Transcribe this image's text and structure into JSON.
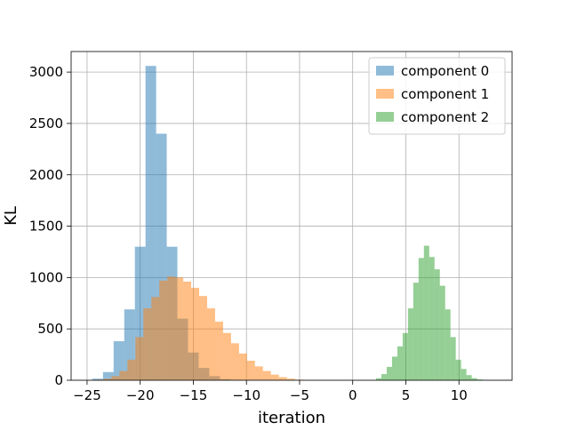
{
  "chart_data": {
    "type": "histogram",
    "title": "",
    "xlabel": "iteration",
    "ylabel": "KL",
    "xlim": [
      -26.5,
      15
    ],
    "ylim": [
      0,
      3200
    ],
    "xticks": [
      -25,
      -20,
      -15,
      -10,
      -5,
      0,
      5,
      10
    ],
    "xtick_labels": [
      "−25",
      "−20",
      "−15",
      "−10",
      "−5",
      "0",
      "5",
      "10"
    ],
    "yticks": [
      0,
      500,
      1000,
      1500,
      2000,
      2500,
      3000
    ],
    "ytick_labels": [
      "0",
      "500",
      "1000",
      "1500",
      "2000",
      "2500",
      "3000"
    ],
    "grid": true,
    "legend_position": "top-right",
    "series": [
      {
        "name": "component 0",
        "color": "#1f77b4",
        "alpha": 0.5,
        "bin_start": -24.5,
        "bin_width": 1.0,
        "values": [
          15,
          80,
          380,
          690,
          1300,
          3060,
          2400,
          1300,
          600,
          270,
          120,
          40,
          10,
          3
        ]
      },
      {
        "name": "component 1",
        "color": "#ff7f0e",
        "alpha": 0.5,
        "bin_start": -24.2,
        "bin_width": 0.75,
        "values": [
          5,
          15,
          40,
          90,
          200,
          420,
          700,
          810,
          970,
          1010,
          1000,
          960,
          900,
          820,
          700,
          570,
          460,
          360,
          260,
          190,
          135,
          90,
          55,
          30,
          15,
          6
        ]
      },
      {
        "name": "component 2",
        "color": "#2ca02c",
        "alpha": 0.5,
        "bin_start": 2.2,
        "bin_width": 0.5,
        "values": [
          20,
          60,
          130,
          230,
          330,
          460,
          700,
          950,
          1190,
          1310,
          1200,
          1080,
          920,
          690,
          420,
          200,
          110,
          50,
          20,
          8
        ]
      }
    ]
  }
}
